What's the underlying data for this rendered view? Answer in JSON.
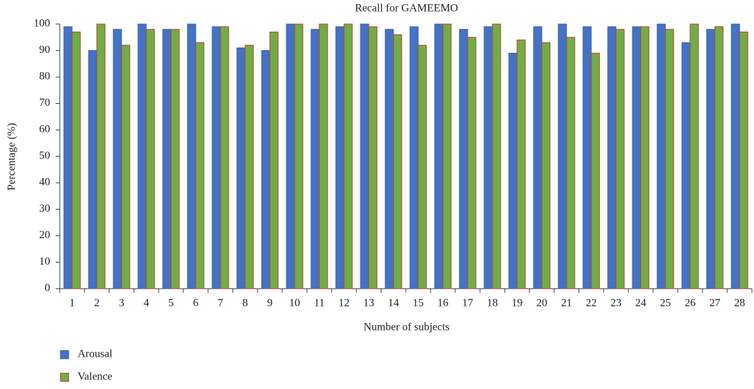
{
  "chart_data": {
    "type": "bar",
    "title": "Recall for GAMEEMO",
    "xlabel": "Number of subjects",
    "ylabel": "Percentage (%)",
    "categories": [
      "1",
      "2",
      "3",
      "4",
      "5",
      "6",
      "7",
      "8",
      "9",
      "10",
      "11",
      "12",
      "13",
      "14",
      "15",
      "16",
      "17",
      "18",
      "19",
      "20",
      "21",
      "22",
      "23",
      "24",
      "25",
      "26",
      "27",
      "28"
    ],
    "series": [
      {
        "name": "Arousal",
        "color": "#4472c4",
        "edgecolor": "#3a63ad",
        "values": [
          99,
          90,
          98,
          100,
          98,
          100,
          99,
          91,
          90,
          100,
          98,
          99,
          100,
          98,
          99,
          100,
          98,
          99,
          89,
          99,
          100,
          99,
          99,
          99,
          100,
          93,
          98,
          100
        ]
      },
      {
        "name": "Valence",
        "color": "#70ad47",
        "edgecolor": "#c0392b",
        "values": [
          97,
          100,
          92,
          98,
          98,
          93,
          99,
          92,
          97,
          100,
          100,
          100,
          99,
          96,
          92,
          100,
          95,
          100,
          94,
          93,
          95,
          89,
          98,
          99,
          98,
          100,
          99,
          97
        ]
      }
    ],
    "ylim": [
      0,
      100
    ],
    "yticks": [
      0,
      10,
      20,
      30,
      40,
      50,
      60,
      70,
      80,
      90,
      100
    ],
    "grid": false
  }
}
